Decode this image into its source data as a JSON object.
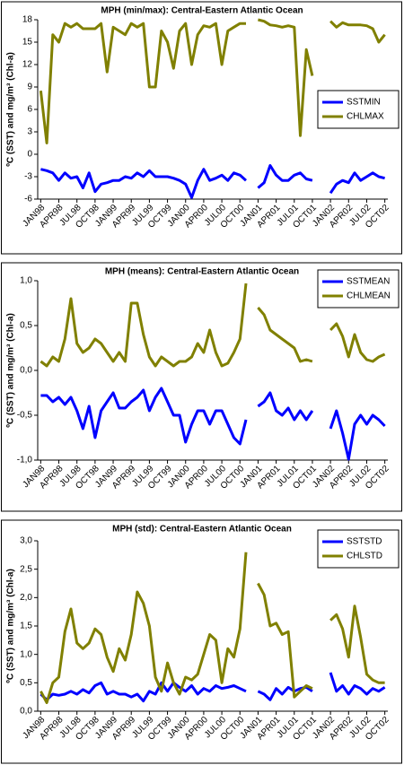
{
  "chart_data": [
    {
      "type": "line",
      "title": "MPH (min/max): Central-Eastern Atlantic Ocean",
      "y_label": "ºC (SST) and mg/m³ (Chl-a)",
      "categories": [
        "JAN98",
        null,
        null,
        "APR98",
        null,
        null,
        "JUL98",
        null,
        null,
        "OCT98",
        null,
        null,
        "JAN99",
        null,
        null,
        "APR99",
        null,
        null,
        "JUL99",
        null,
        null,
        "OCT99",
        null,
        null,
        "JAN00",
        null,
        null,
        "APR00",
        null,
        null,
        "JUL00",
        null,
        null,
        "OCT00",
        null,
        null,
        "JAN01",
        null,
        null,
        "APR01",
        null,
        null,
        "JUL01",
        null,
        null,
        "OCT01",
        null,
        null,
        "JAN02",
        null,
        null,
        "APR02",
        null,
        null,
        "JUL02",
        null,
        null,
        "OCT02"
      ],
      "ylim": [
        -6,
        18
      ],
      "yticks": [
        -6,
        -3,
        0,
        3,
        6,
        9,
        12,
        15,
        18
      ],
      "grid": false,
      "legend": "right",
      "series": [
        {
          "name": "SSTMIN",
          "color": "#0000ff",
          "values": [
            -2,
            -2.2,
            -2.5,
            -3.5,
            -2.5,
            -3.2,
            -3,
            -4.5,
            -2.5,
            -5,
            -4,
            -3.8,
            -3.5,
            -3.5,
            -3,
            -3.2,
            -2.5,
            -3,
            -2.2,
            -3,
            -3,
            -3,
            -3.2,
            -3.5,
            -4,
            -5.8,
            -3.5,
            -2,
            -3.5,
            -3.2,
            -2.8,
            -3.5,
            -2.5,
            -2.8,
            -3.5,
            null,
            -4.5,
            -3.8,
            -1.5,
            -2.8,
            -3.5,
            -3.5,
            -2.8,
            -2.5,
            -3.3,
            -3.5,
            null,
            null,
            -5.2,
            -4,
            -3.5,
            -3.8,
            -2.5,
            -3.5,
            -3,
            -2.5,
            -3,
            -3.2
          ]
        },
        {
          "name": "CHLMAX",
          "color": "#808000",
          "values": [
            8.5,
            1.5,
            16,
            15,
            17.5,
            17,
            17.5,
            16.8,
            16.8,
            16.8,
            17.5,
            11,
            17,
            16.5,
            16,
            17.5,
            17,
            17.5,
            9,
            9,
            16.5,
            15,
            11.5,
            16.5,
            17.5,
            12,
            16,
            17.2,
            17,
            17.5,
            12,
            16.5,
            17,
            17.5,
            17.5,
            null,
            18,
            17.8,
            17.3,
            17.2,
            17,
            17.2,
            17,
            2.5,
            14,
            10.5,
            null,
            null,
            17.8,
            17,
            17.6,
            17.3,
            17.3,
            17.3,
            17.2,
            16.8,
            15,
            16
          ]
        }
      ]
    },
    {
      "type": "line",
      "title": "MPH (means): Central-Eastern Atlantic Ocean",
      "y_label": "ºC (SST) and mg/m³ (Chl-a)",
      "categories": [
        "JAN98",
        null,
        null,
        "APR98",
        null,
        null,
        "JUL98",
        null,
        null,
        "OCT98",
        null,
        null,
        "JAN99",
        null,
        null,
        "APR99",
        null,
        null,
        "JUL99",
        null,
        null,
        "OCT99",
        null,
        null,
        "JAN00",
        null,
        null,
        "APR00",
        null,
        null,
        "JUL00",
        null,
        null,
        "OCT00",
        null,
        null,
        "JAN01",
        null,
        null,
        "APR01",
        null,
        null,
        "JUL01",
        null,
        null,
        "OCT01",
        null,
        null,
        "JAN02",
        null,
        null,
        "APR02",
        null,
        null,
        "JUL02",
        null,
        null,
        "OCT02"
      ],
      "ylim": [
        -1,
        1
      ],
      "yticks": [
        {
          "value": -1,
          "label": "-1,0"
        },
        {
          "value": -0.5,
          "label": "-0,5"
        },
        {
          "value": 0,
          "label": "0,0"
        },
        {
          "value": 0.5,
          "label": "0,5"
        },
        {
          "value": 1,
          "label": "1,0"
        }
      ],
      "grid": false,
      "legend": "top-right",
      "series": [
        {
          "name": "SSTMEAN",
          "color": "#0000ff",
          "values": [
            -0.28,
            -0.28,
            -0.35,
            -0.3,
            -0.38,
            -0.3,
            -0.45,
            -0.65,
            -0.4,
            -0.75,
            -0.45,
            -0.35,
            -0.25,
            -0.42,
            -0.42,
            -0.35,
            -0.3,
            -0.22,
            -0.45,
            -0.3,
            -0.2,
            -0.35,
            -0.5,
            -0.5,
            -0.8,
            -0.6,
            -0.45,
            -0.45,
            -0.6,
            -0.45,
            -0.45,
            -0.6,
            -0.75,
            -0.82,
            -0.55,
            null,
            -0.4,
            -0.35,
            -0.25,
            -0.45,
            -0.5,
            -0.42,
            -0.55,
            -0.45,
            -0.55,
            -0.45,
            null,
            null,
            -0.65,
            -0.45,
            -0.7,
            -0.99,
            -0.6,
            -0.5,
            -0.6,
            -0.5,
            -0.55,
            -0.62
          ]
        },
        {
          "name": "CHLMEAN",
          "color": "#808000",
          "values": [
            0.1,
            0.05,
            0.15,
            0.1,
            0.35,
            0.8,
            0.3,
            0.2,
            0.25,
            0.35,
            0.3,
            0.2,
            0.1,
            0.2,
            0.1,
            0.75,
            0.75,
            0.4,
            0.15,
            0.05,
            0.15,
            0.1,
            0.05,
            0.1,
            0.1,
            0.15,
            0.3,
            0.2,
            0.45,
            0.2,
            0.05,
            0.08,
            0.2,
            0.35,
            0.97,
            null,
            0.7,
            0.62,
            0.45,
            0.4,
            0.35,
            0.3,
            0.25,
            0.1,
            0.12,
            0.1,
            null,
            null,
            0.45,
            0.52,
            0.38,
            0.15,
            0.4,
            0.2,
            0.12,
            0.1,
            0.15,
            0.18
          ]
        }
      ]
    },
    {
      "type": "line",
      "title": "MPH (std): Central-Eastern Atlantic Ocean",
      "y_label": "ºC (SST) and mg/m³ (Chl-a)",
      "categories": [
        "JAN98",
        null,
        null,
        "APR98",
        null,
        null,
        "JUL98",
        null,
        null,
        "OCT98",
        null,
        null,
        "JAN99",
        null,
        null,
        "APR99",
        null,
        null,
        "JUL99",
        null,
        null,
        "OCT99",
        null,
        null,
        "JAN00",
        null,
        null,
        "APR00",
        null,
        null,
        "JUL00",
        null,
        null,
        "OCT00",
        null,
        null,
        "JAN01",
        null,
        null,
        "APR01",
        null,
        null,
        "JUL01",
        null,
        null,
        "OCT01",
        null,
        null,
        "JAN02",
        null,
        null,
        "APR02",
        null,
        null,
        "JUL02",
        null,
        null,
        "OCT02"
      ],
      "ylim": [
        0,
        3
      ],
      "yticks": [
        {
          "value": 0,
          "label": "0,0"
        },
        {
          "value": 0.5,
          "label": "0,5"
        },
        {
          "value": 1,
          "label": "1,0"
        },
        {
          "value": 1.5,
          "label": "1,5"
        },
        {
          "value": 2,
          "label": "2,0"
        },
        {
          "value": 2.5,
          "label": "2,5"
        },
        {
          "value": 3,
          "label": "3,0"
        }
      ],
      "grid": false,
      "legend": "top-right",
      "series": [
        {
          "name": "SSTSTD",
          "color": "#0000ff",
          "values": [
            0.3,
            0.2,
            0.3,
            0.28,
            0.3,
            0.35,
            0.3,
            0.38,
            0.32,
            0.45,
            0.5,
            0.3,
            0.35,
            0.3,
            0.3,
            0.25,
            0.3,
            0.18,
            0.35,
            0.3,
            0.5,
            0.35,
            0.5,
            0.42,
            0.35,
            0.45,
            0.3,
            0.4,
            0.35,
            0.45,
            0.4,
            0.42,
            0.45,
            0.4,
            0.35,
            null,
            0.35,
            0.3,
            0.2,
            0.4,
            0.3,
            0.42,
            0.35,
            0.4,
            0.42,
            0.35,
            null,
            null,
            0.68,
            0.35,
            0.45,
            0.3,
            0.45,
            0.4,
            0.3,
            0.4,
            0.35,
            0.42
          ]
        },
        {
          "name": "CHLSTD",
          "color": "#808000",
          "values": [
            0.35,
            0.15,
            0.5,
            0.6,
            1.4,
            1.8,
            1.2,
            1.1,
            1.2,
            1.45,
            1.35,
            0.95,
            0.7,
            1.1,
            0.9,
            1.35,
            2.1,
            1.9,
            1.5,
            0.6,
            0.35,
            0.85,
            0.5,
            0.3,
            0.6,
            0.55,
            0.65,
            1.0,
            1.35,
            1.25,
            0.5,
            1.1,
            0.95,
            1.45,
            2.8,
            null,
            2.25,
            2.05,
            1.5,
            1.55,
            1.35,
            1.4,
            0.25,
            0.35,
            0.45,
            0.4,
            null,
            null,
            1.6,
            1.7,
            1.45,
            0.95,
            1.85,
            1.3,
            0.65,
            0.55,
            0.5,
            0.5
          ]
        }
      ]
    }
  ]
}
